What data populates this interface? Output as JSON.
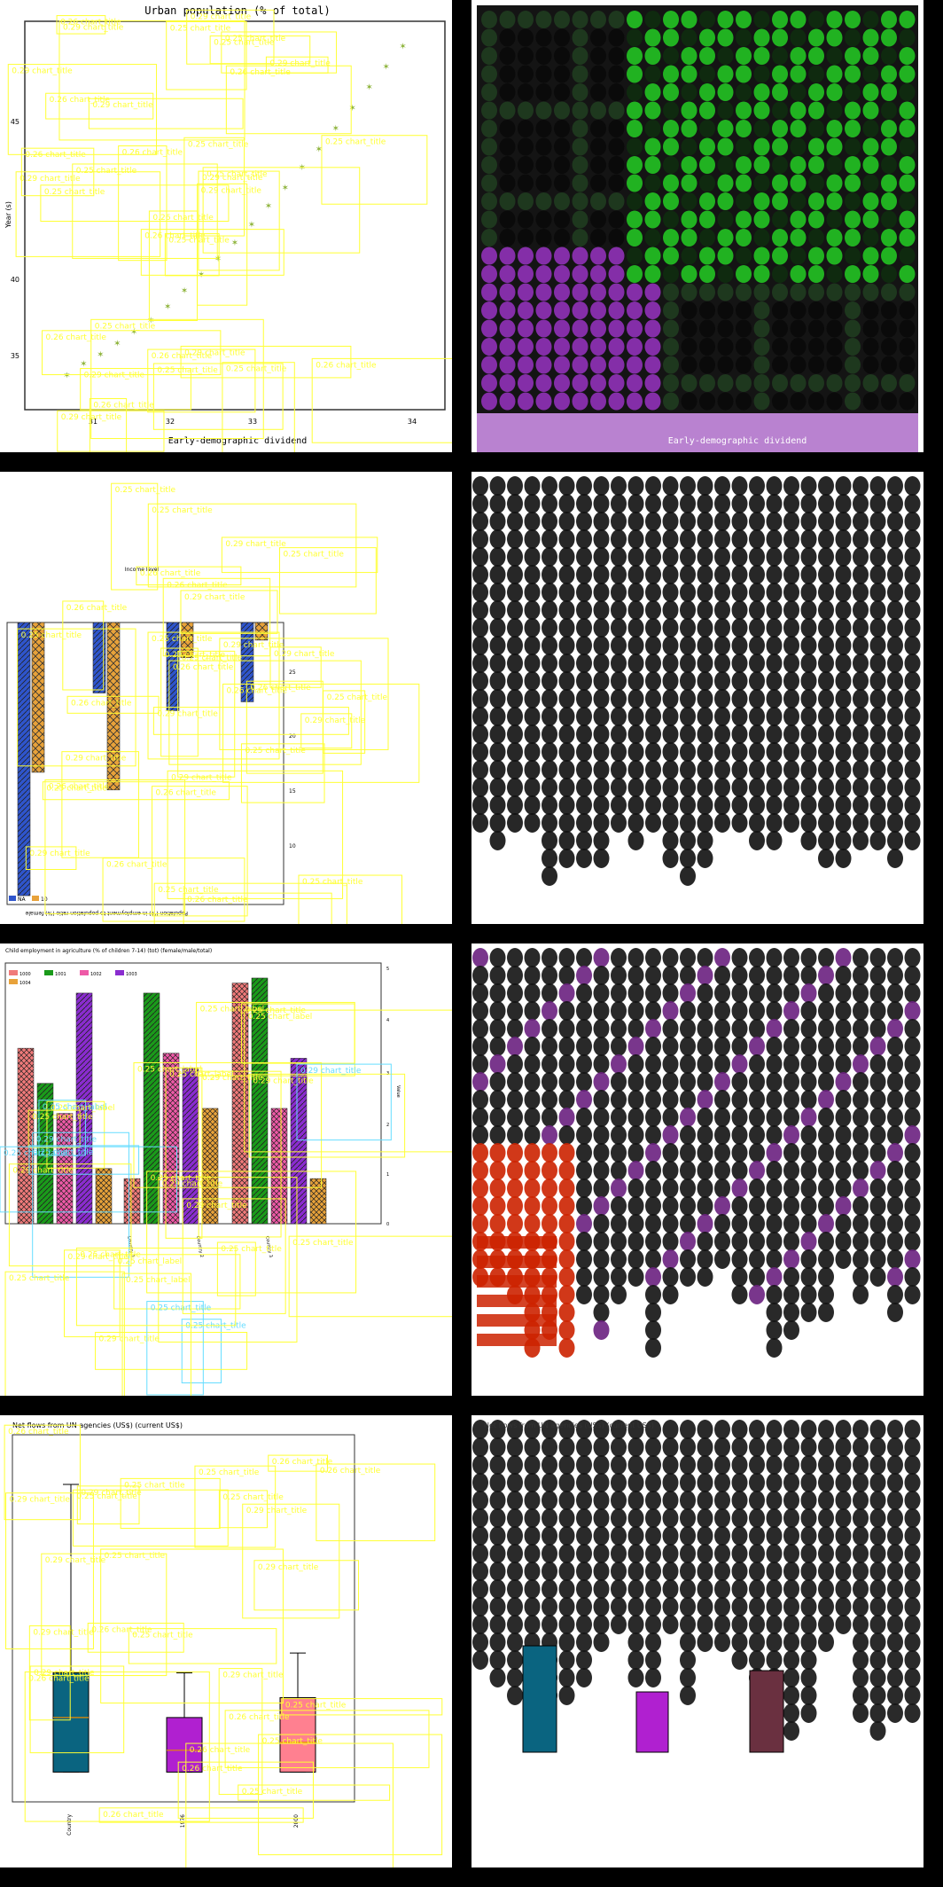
{
  "app": {
    "title": "Urban population (% of total)"
  },
  "colors": {
    "yellow_overlay": "#ffff33",
    "cyan_overlay": "#66ddff",
    "scatter_green": "#8db33a",
    "blue_bar": "#2f55cc",
    "orange_bar": "#e8a23a",
    "purple": "#8a2ccf",
    "pink": "#ee5aa7",
    "salmon": "#f07a7a",
    "green": "#1a9a1a",
    "box_teal": "#0a6480",
    "box_purple": "#b020d0",
    "box_pink": "#ff8090",
    "heat_green": "#22bb22",
    "heat_purple": "#8a2fb0",
    "red": "#cc2200"
  },
  "overlay": {
    "label_a": "0.25 chart_title",
    "label_b": "0.26 chart_title",
    "label_c": "0.29 chart_title",
    "label_d": "0.25 chart_label"
  },
  "panels": {
    "p1": {
      "title": "Urban population (% of total)",
      "xlabel": "Early-demographic dividend",
      "ylabel": "Year (s)",
      "xticks": [
        "31",
        "32",
        "33",
        "34"
      ],
      "yticks": [
        "35",
        "40",
        "45"
      ]
    },
    "p2": {
      "title": "Income level",
      "xlabel": "Population (%) in employment to population ratio (%) female",
      "legend": [
        "NA",
        "10"
      ],
      "yticks": [
        "25",
        "20",
        "15",
        "10"
      ],
      "text_caption": "Population in employment (15+, female)"
    },
    "p3": {
      "title": "Child employment in agriculture (% of children 7-14) (tot) (female/male/total)",
      "ylabel": "Value",
      "legend": [
        "1000",
        "1001",
        "1002",
        "1003",
        "1004"
      ],
      "xticks": [
        "Country 1",
        "Country 2",
        "Country 3"
      ],
      "yticks": [
        "5",
        "4",
        "3",
        "2",
        "1",
        "0"
      ]
    },
    "p4": {
      "title": "Net flows from UN agencies (US$) (current US$)",
      "xticks": [
        "Country",
        "1976",
        "2000"
      ]
    }
  },
  "chart_data": [
    {
      "type": "scatter",
      "title": "Urban population (% of total)",
      "xlabel": "Early-demographic dividend",
      "ylabel": "",
      "x": [
        31.0,
        31.2,
        31.4,
        31.6,
        31.8,
        32.0,
        32.2,
        32.4,
        32.6,
        32.8,
        33.0,
        33.2,
        33.4,
        33.6,
        33.8,
        34.0,
        34.2,
        34.4,
        34.6,
        34.8,
        35.0
      ],
      "y": [
        33.5,
        34.0,
        34.4,
        34.9,
        35.4,
        35.9,
        36.5,
        37.2,
        37.9,
        38.6,
        39.3,
        40.1,
        40.9,
        41.7,
        42.6,
        43.4,
        44.3,
        45.2,
        46.1,
        47.0,
        47.9
      ],
      "xlim": [
        30.5,
        35.5
      ],
      "ylim": [
        32,
        49
      ]
    },
    {
      "type": "bar",
      "title": "Income level",
      "categories": [
        "A",
        "B",
        "C",
        "D"
      ],
      "series": [
        {
          "name": "NA",
          "values": [
            31.0,
            8.0,
            10.0,
            9.0
          ]
        },
        {
          "name": "10",
          "values": [
            17.0,
            19.0,
            4.0,
            2.0
          ]
        }
      ],
      "ylim": [
        0,
        32
      ]
    },
    {
      "type": "bar",
      "title": "Child employment in agriculture (% of children 7-14) (tot) (female/male/total)",
      "categories": [
        "Country 1",
        "Country 2",
        "Country 3"
      ],
      "series": [
        {
          "name": "1000",
          "values": [
            3.5,
            0.9,
            4.8
          ]
        },
        {
          "name": "1001",
          "values": [
            2.8,
            4.6,
            4.9
          ]
        },
        {
          "name": "1002",
          "values": [
            2.2,
            3.4,
            2.3
          ]
        },
        {
          "name": "1003",
          "values": [
            4.6,
            3.1,
            3.3
          ]
        },
        {
          "name": "1004",
          "values": [
            1.1,
            2.3,
            0.9
          ]
        }
      ],
      "ylim": [
        0,
        5.2
      ]
    },
    {
      "type": "box",
      "title": "Net flows from UN agencies (US$) (current US$)",
      "categories": [
        "Country",
        "1976",
        "2000"
      ],
      "boxes": [
        {
          "min": 0.0,
          "q1": 0.0,
          "median": 0.55,
          "q3": 1.0,
          "max": 2.9
        },
        {
          "min": 0.0,
          "q1": 0.0,
          "median": 0.22,
          "q3": 0.55,
          "max": 1.0
        },
        {
          "min": 0.0,
          "q1": 0.0,
          "median": 0.3,
          "q3": 0.75,
          "max": 1.2
        }
      ],
      "ylim": [
        -0.3,
        3.4
      ]
    }
  ]
}
